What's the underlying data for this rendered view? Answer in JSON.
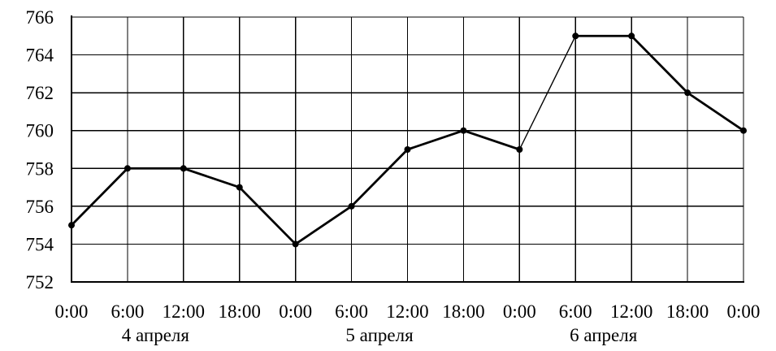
{
  "chart_data": {
    "type": "line",
    "title": "",
    "xlabel": "",
    "ylabel": "",
    "x_tick_labels": [
      "0:00",
      "6:00",
      "12:00",
      "18:00",
      "0:00",
      "6:00",
      "12:00",
      "18:00",
      "0:00",
      "6:00",
      "12:00",
      "18:00",
      "0:00"
    ],
    "date_labels": [
      {
        "label": "4 апреля",
        "center_tick": 1.5
      },
      {
        "label": "5 апреля",
        "center_tick": 5.5
      },
      {
        "label": "6 апреля",
        "center_tick": 9.5
      }
    ],
    "y_ticks": [
      752,
      754,
      756,
      758,
      760,
      762,
      764,
      766
    ],
    "ylim": [
      752,
      766
    ],
    "grid": true,
    "series": [
      {
        "values": [
          755,
          758,
          758,
          757,
          754,
          756,
          759,
          760,
          759,
          765,
          765,
          762,
          760
        ],
        "thin_segments": [
          8
        ]
      }
    ],
    "line_color": "#000000"
  }
}
